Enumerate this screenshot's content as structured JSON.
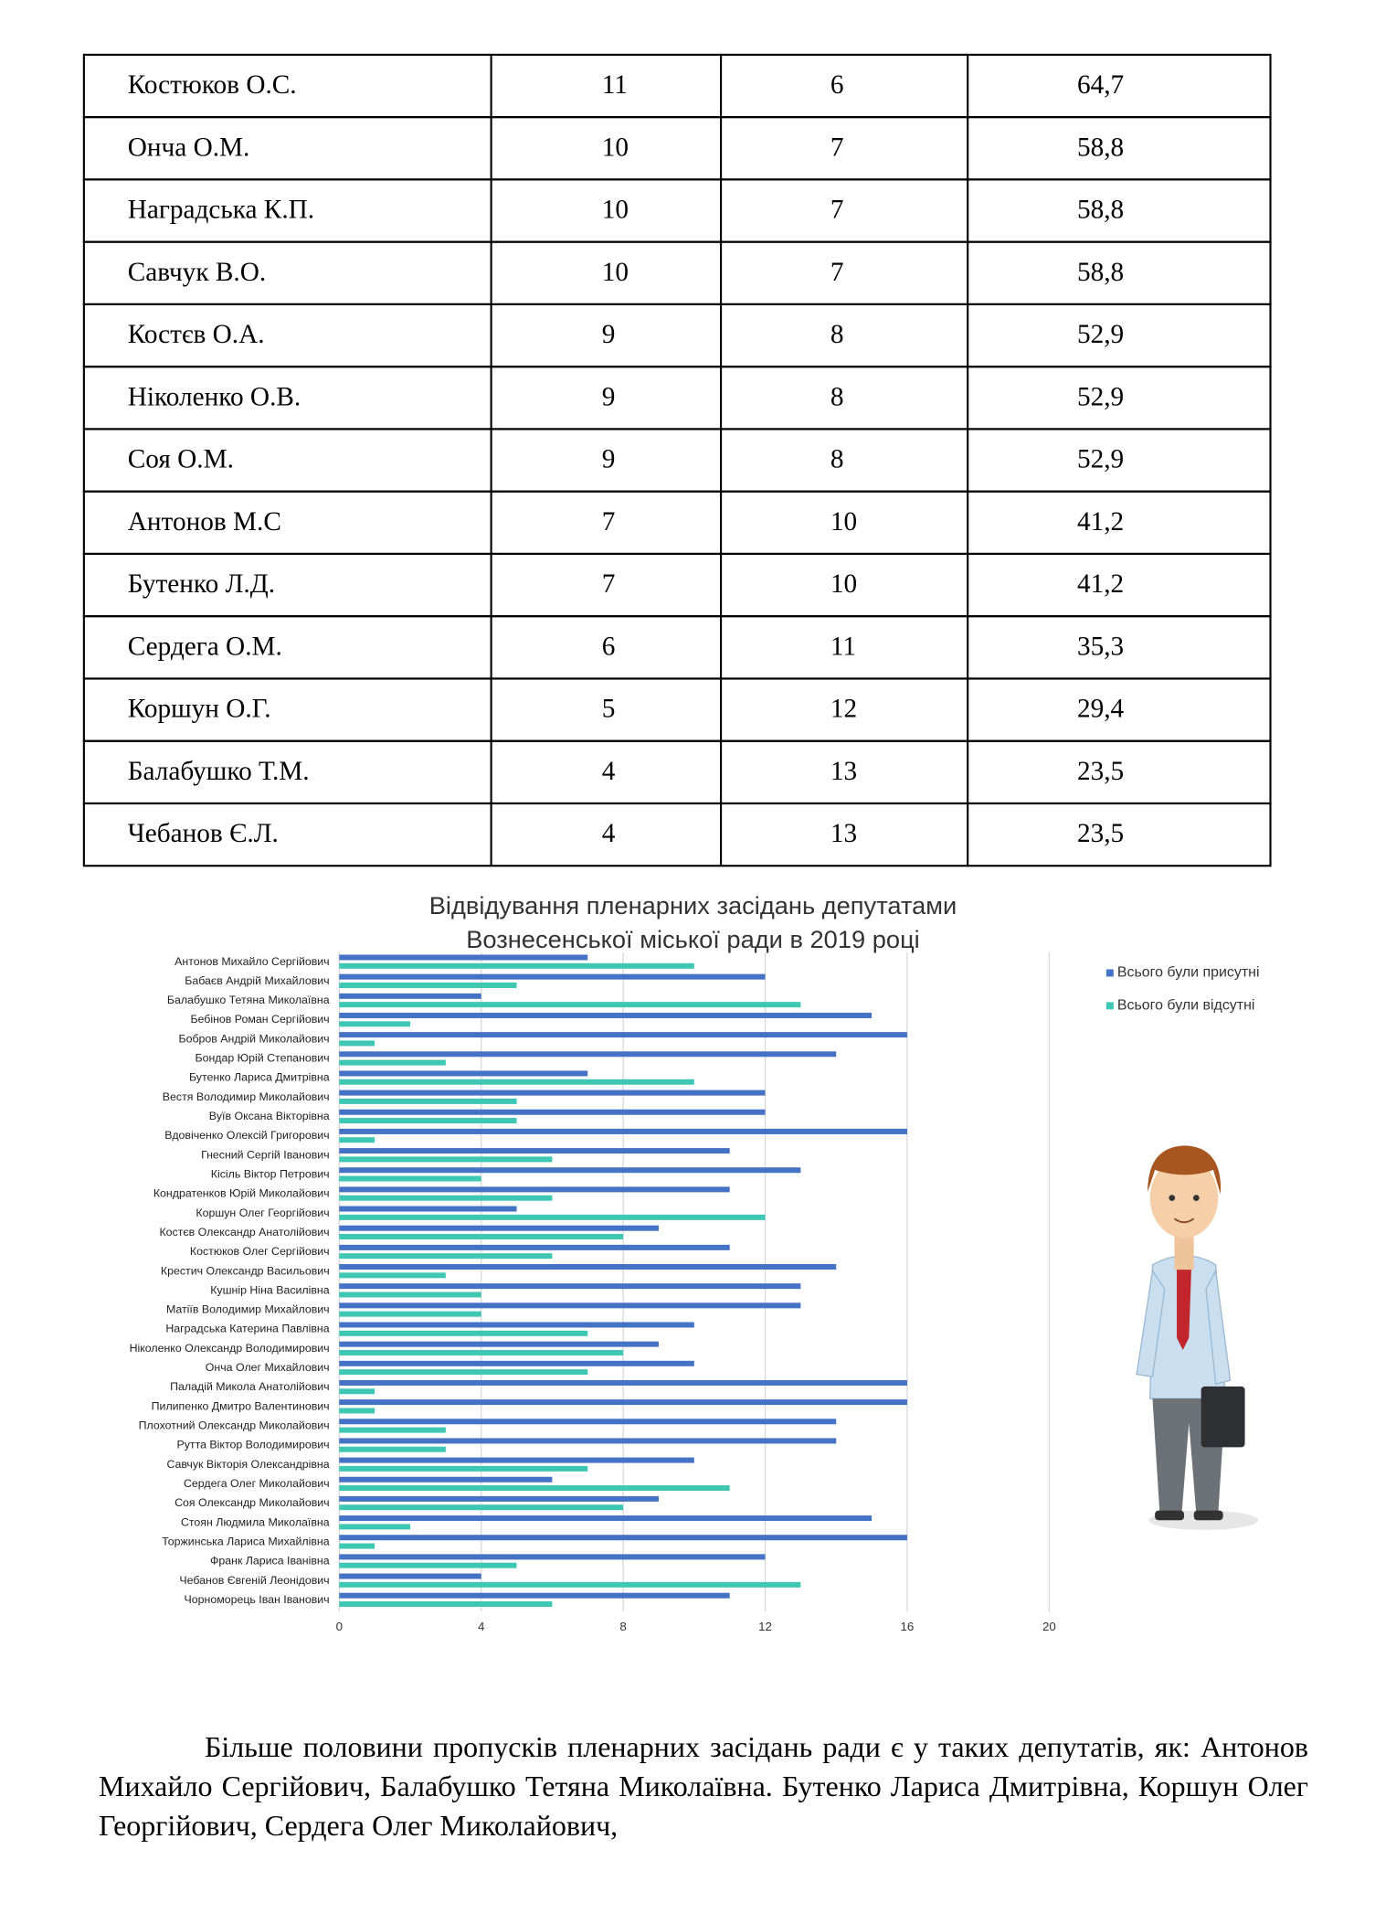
{
  "table": {
    "rows": [
      [
        "Костюков О.С.",
        "11",
        "6",
        "64,7"
      ],
      [
        "Онча О.М.",
        "10",
        "7",
        "58,8"
      ],
      [
        "Наградська К.П.",
        "10",
        "7",
        "58,8"
      ],
      [
        "Савчук В.О.",
        "10",
        "7",
        "58,8"
      ],
      [
        "Костєв О.А.",
        "9",
        "8",
        "52,9"
      ],
      [
        "Ніколенко О.В.",
        "9",
        "8",
        "52,9"
      ],
      [
        "Соя О.М.",
        "9",
        "8",
        "52,9"
      ],
      [
        "Антонов М.С",
        "7",
        "10",
        "41,2"
      ],
      [
        "Бутенко Л.Д.",
        "7",
        "10",
        "41,2"
      ],
      [
        "Сердега О.М.",
        "6",
        "11",
        "35,3"
      ],
      [
        "Коршун О.Г.",
        "5",
        "12",
        "29,4"
      ],
      [
        "Балабушко Т.М.",
        "4",
        "13",
        "23,5"
      ],
      [
        "Чебанов Є.Л.",
        "4",
        "13",
        "23,5"
      ]
    ]
  },
  "chart_data": {
    "type": "hbar",
    "title": [
      "Відвідування пленарних засідань депутатами",
      "Вознесенської міської ради в 2019 році"
    ],
    "categories": [
      "Антонов Михайло Сергійович",
      "Бабаєв Андрій Михайлович",
      "Балабушко Тетяна Миколаївна",
      "Бебінов Роман Сергійович",
      "Бобров Андрій Миколайович",
      "Бондар Юрій Степанович",
      "Бутенко Лариса Дмитрівна",
      "Вестя Володимир Миколайович",
      "Вуїв Оксана Вікторівна",
      "Вдовіченко Олексій Григорович",
      "Гнесний Сергій Іванович",
      "Кісіль Віктор Петрович",
      "Кондратенков Юрій Миколайович",
      "Коршун Олег Георгійович",
      "Костєв Олександр Анатолійович",
      "Костюков Олег Сергійович",
      "Крестич Олександр Васильович",
      "Кушнір Ніна Василівна",
      "Матіїв Володимир Михайлович",
      "Наградська Катерина Павлівна",
      "Ніколенко Олександр Володимирович",
      "Онча Олег Михайлович",
      "Паладій Микола Анатолійович",
      "Пилипенко Дмитро Валентинович",
      "Плохотний Олександр Миколайович",
      "Рутта Віктор Володимирович",
      "Савчук Вікторія Олександрівна",
      "Сердега Олег Миколайович",
      "Соя Олександр Миколайович",
      "Стоян Людмила Миколаївна",
      "Торжинська Лариса Михайлівна",
      "Франк Лариса Іванівна",
      "Чебанов Євгеній Леонідович",
      "Чорноморець Іван Іванович"
    ],
    "series": [
      {
        "name": "Всього були присутні",
        "color": "#4472c4",
        "values": [
          7,
          12,
          4,
          15,
          16,
          14,
          7,
          12,
          12,
          16,
          11,
          13,
          11,
          5,
          9,
          11,
          14,
          13,
          13,
          10,
          9,
          10,
          16,
          16,
          14,
          14,
          10,
          6,
          9,
          15,
          16,
          12,
          4,
          11
        ]
      },
      {
        "name": "Всього були відсутні",
        "color": "#3ec8b4",
        "values": [
          10,
          5,
          13,
          2,
          1,
          3,
          10,
          5,
          5,
          1,
          6,
          4,
          6,
          12,
          8,
          6,
          3,
          4,
          4,
          7,
          8,
          7,
          1,
          1,
          3,
          3,
          7,
          11,
          8,
          2,
          1,
          5,
          13,
          6
        ]
      }
    ],
    "xlim": [
      0,
      20
    ],
    "xticks": [
      0,
      4,
      8,
      12,
      16,
      20
    ],
    "grid": true,
    "legend": "right"
  },
  "paragraph": "Більше половини пропусків пленарних засідань ради є у таких депутатів, як: Антонов Михайло Сергійович, Балабушко Тетяна Миколаївна. Бутенко Лариса Дмитрівна, Коршун Олег Георгійович, Сердега Олег Миколайович,"
}
